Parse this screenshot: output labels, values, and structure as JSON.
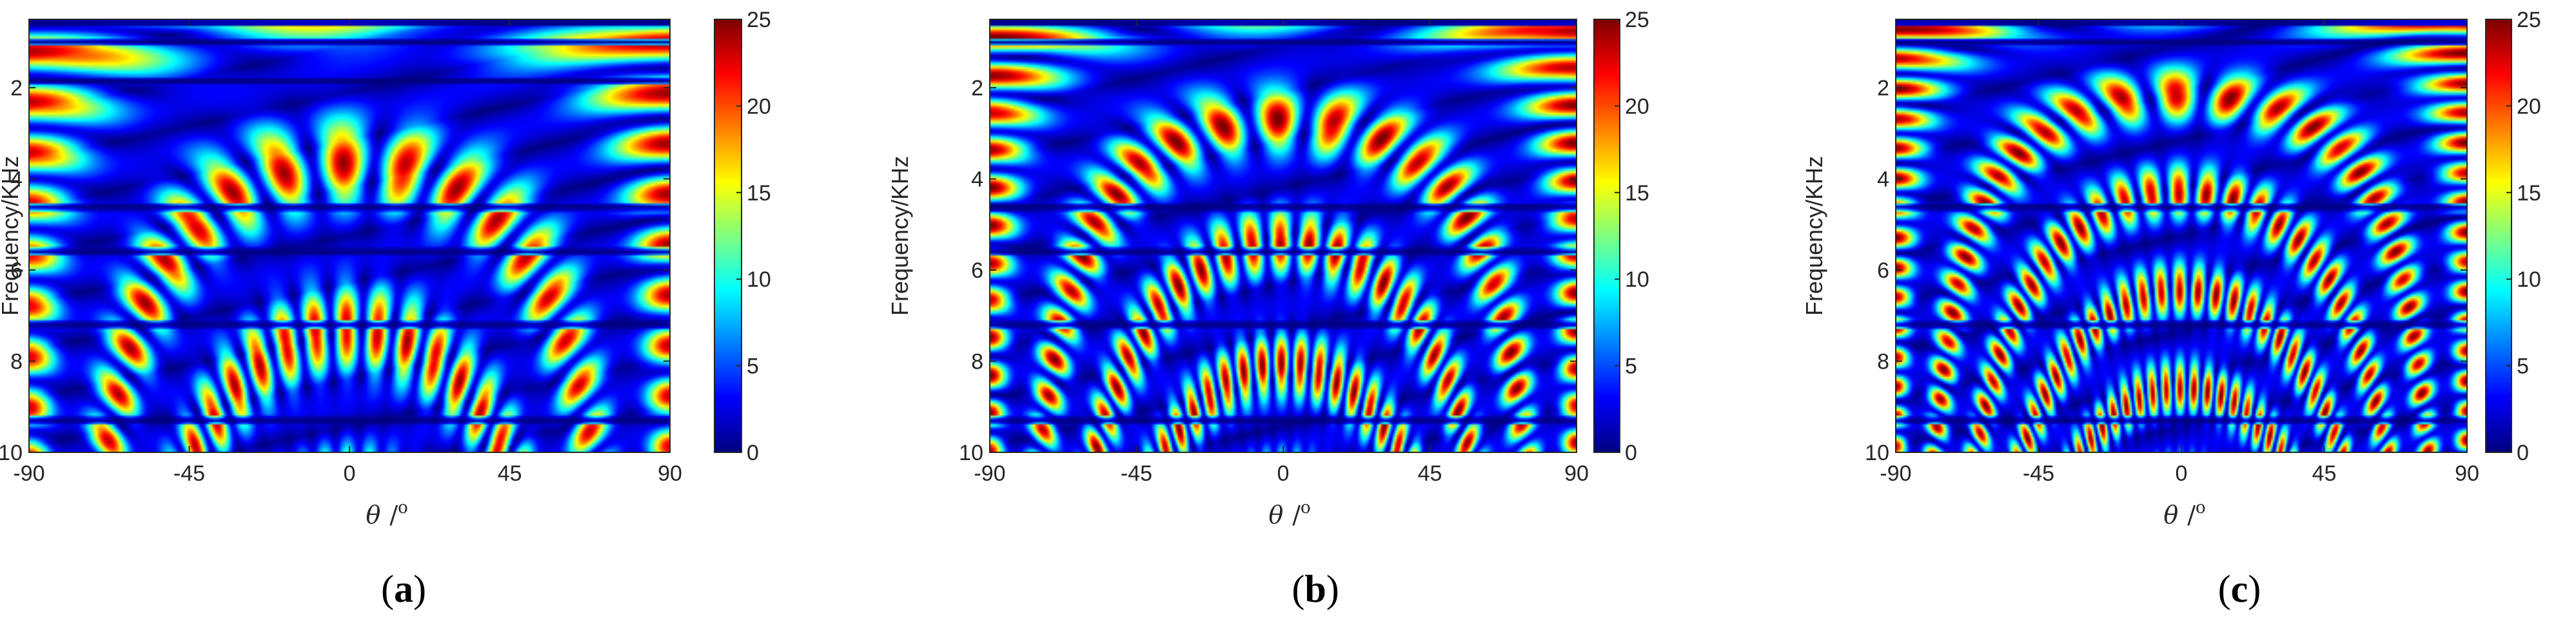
{
  "chart_data": [
    {
      "panel": "a",
      "caption_letter": "a",
      "type": "heatmap",
      "xlabel_symbol": "θ",
      "xlabel_unit": "/",
      "xlabel_degree": "o",
      "ylabel": "Frequency/KHz",
      "x_ticks": [
        "-90",
        "-45",
        "0",
        "45",
        "90"
      ],
      "y_ticks": [
        "2",
        "4",
        "6",
        "8",
        "10"
      ],
      "xlim": [
        -90,
        90
      ],
      "ylim": [
        0.5,
        10
      ],
      "colorbar": {
        "ticks": [
          "0",
          "5",
          "10",
          "15",
          "20",
          "25"
        ],
        "range": [
          0,
          25
        ],
        "colormap": "jet"
      },
      "band_edges_khz": [
        1.0,
        1.85,
        4.62,
        5.6,
        7.2,
        9.3
      ],
      "peak_level": 22
    },
    {
      "panel": "b",
      "caption_letter": "b",
      "type": "heatmap",
      "xlabel_symbol": "θ",
      "xlabel_unit": "/",
      "xlabel_degree": "o",
      "ylabel": "Frequency/KHz",
      "x_ticks": [
        "-90",
        "-45",
        "0",
        "45",
        "90"
      ],
      "y_ticks": [
        "2",
        "4",
        "6",
        "8",
        "10"
      ],
      "xlim": [
        -90,
        90
      ],
      "ylim": [
        0.5,
        10
      ],
      "colorbar": {
        "ticks": [
          "0",
          "5",
          "10",
          "15",
          "20",
          "25"
        ],
        "range": [
          0,
          25
        ],
        "colormap": "jet"
      },
      "band_edges_khz": [
        1.0,
        4.62,
        5.6,
        7.2,
        9.3
      ],
      "peak_level": 23
    },
    {
      "panel": "c",
      "caption_letter": "c",
      "type": "heatmap",
      "xlabel_symbol": "θ",
      "xlabel_unit": "/",
      "xlabel_degree": "o",
      "ylabel": "Frequency/KHz",
      "x_ticks": [
        "-90",
        "-45",
        "0",
        "45",
        "90"
      ],
      "y_ticks": [
        "2",
        "4",
        "6",
        "8",
        "10"
      ],
      "xlim": [
        -90,
        90
      ],
      "ylim": [
        0.5,
        10
      ],
      "colorbar": {
        "ticks": [
          "0",
          "5",
          "10",
          "15",
          "20",
          "25"
        ],
        "range": [
          0,
          25
        ],
        "colormap": "jet"
      },
      "band_edges_khz": [
        1.0,
        4.62,
        7.2,
        9.3
      ],
      "peak_level": 23
    }
  ]
}
